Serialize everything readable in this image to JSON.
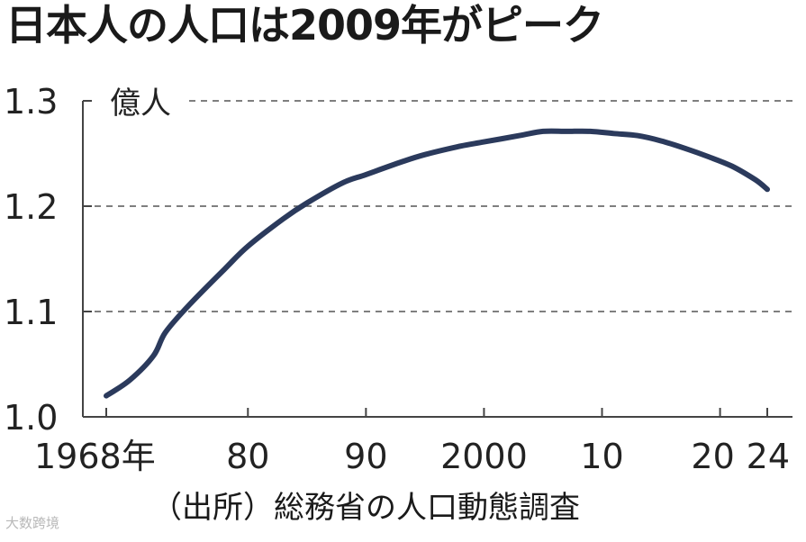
{
  "chart_data": {
    "type": "line",
    "title": "日本人の人口は2009年がピーク",
    "ylabel": "億人",
    "source": "（出所）総務省の人口動態調査",
    "ylim": [
      1.0,
      1.3
    ],
    "xlim": [
      1968,
      2024
    ],
    "y_ticks": [
      "1.3",
      "1.2",
      "1.1",
      "1.0"
    ],
    "y_tick_values": [
      1.3,
      1.2,
      1.1,
      1.0
    ],
    "x_ticks": [
      "1968年",
      "80",
      "90",
      "2000",
      "10",
      "20",
      "24"
    ],
    "x_tick_values": [
      1968,
      1980,
      1990,
      2000,
      2010,
      2020,
      2024
    ],
    "grid": "horizontal dashed",
    "line_color": "#2b3a5c",
    "series": [
      {
        "x": [
          1968,
          1970,
          1972,
          1973,
          1975,
          1978,
          1980,
          1983,
          1985,
          1988,
          1990,
          1993,
          1995,
          1998,
          2000,
          2003,
          2005,
          2007,
          2009,
          2011,
          2013,
          2015,
          2017,
          2019,
          2021,
          2023,
          2024
        ],
        "values": [
          1.02,
          1.035,
          1.058,
          1.08,
          1.106,
          1.14,
          1.162,
          1.188,
          1.203,
          1.222,
          1.23,
          1.242,
          1.249,
          1.257,
          1.261,
          1.267,
          1.271,
          1.271,
          1.271,
          1.269,
          1.267,
          1.262,
          1.255,
          1.247,
          1.238,
          1.225,
          1.216
        ]
      }
    ]
  },
  "watermark": "大数跨境"
}
